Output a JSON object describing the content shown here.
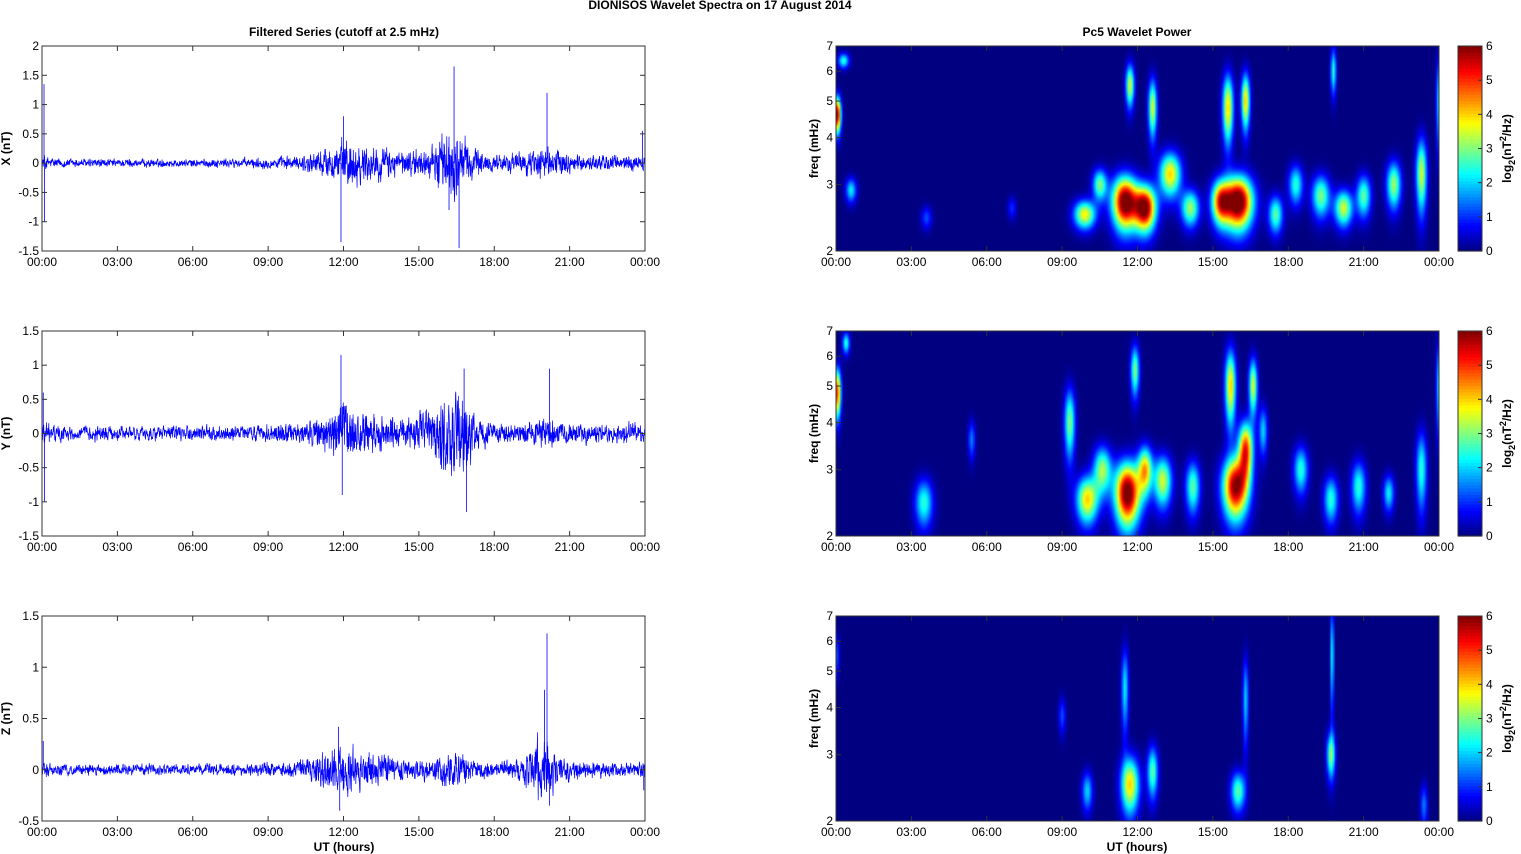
{
  "figure_title": "DIONISOS Wavelet Spectra on 17 August    2014",
  "left_title": "Filtered Series (cutoff at 2.5 mHz)",
  "right_title": "Pc5 Wavelet Power",
  "xlabel": "UT (hours)",
  "colors": {
    "trace": "#0000ff",
    "frame": "#333333"
  },
  "chart_data": [
    {
      "type": "line",
      "component": "X",
      "ylabel": "X (nT)",
      "xlim": [
        0,
        24
      ],
      "ylim": [
        -1.5,
        2
      ],
      "yticks": [
        "-1.5",
        "-1",
        "-0.5",
        "0",
        "0.5",
        "1",
        "1.5",
        "2"
      ],
      "xticks": [
        "00:00",
        "03:00",
        "06:00",
        "09:00",
        "12:00",
        "15:00",
        "18:00",
        "21:00",
        "00:00"
      ],
      "envelope": {
        "x": [
          0,
          0.3,
          1,
          3,
          6,
          8,
          9.5,
          10.5,
          11.5,
          12,
          12.8,
          13.5,
          14.5,
          15.5,
          16.2,
          16.6,
          17.2,
          18,
          19,
          20,
          20.5,
          21.5,
          23,
          24
        ],
        "y": [
          0.25,
          0.15,
          0.12,
          0.1,
          0.1,
          0.12,
          0.15,
          0.2,
          0.45,
          0.6,
          0.5,
          0.4,
          0.3,
          0.4,
          0.9,
          0.8,
          0.4,
          0.2,
          0.25,
          0.4,
          0.3,
          0.2,
          0.2,
          0.25
        ]
      },
      "spikes": [
        {
          "x": 0.08,
          "y": 1.35
        },
        {
          "x": 0.1,
          "y": -1.0
        },
        {
          "x": 11.9,
          "y": -1.35
        },
        {
          "x": 12.0,
          "y": 0.8
        },
        {
          "x": 16.4,
          "y": 1.65
        },
        {
          "x": 16.6,
          "y": -1.45
        },
        {
          "x": 16.2,
          "y": -0.8
        },
        {
          "x": 20.1,
          "y": 1.2
        },
        {
          "x": 23.9,
          "y": 0.55
        }
      ]
    },
    {
      "type": "line",
      "component": "Y",
      "ylabel": "Y (nT)",
      "xlim": [
        0,
        24
      ],
      "ylim": [
        -1.5,
        1.5
      ],
      "yticks": [
        "-1.5",
        "-1",
        "-0.5",
        "0",
        "0.5",
        "1",
        "1.5"
      ],
      "xticks": [
        "00:00",
        "03:00",
        "06:00",
        "09:00",
        "12:00",
        "15:00",
        "18:00",
        "21:00",
        "00:00"
      ],
      "envelope": {
        "x": [
          0,
          0.3,
          1,
          3,
          6,
          8,
          9.5,
          10.5,
          11.5,
          12,
          12.8,
          13.5,
          14.5,
          15.5,
          16.2,
          16.6,
          17.2,
          18,
          19,
          20,
          20.5,
          21.5,
          23,
          24
        ],
        "y": [
          0.3,
          0.2,
          0.15,
          0.15,
          0.15,
          0.15,
          0.2,
          0.25,
          0.5,
          0.7,
          0.45,
          0.35,
          0.3,
          0.5,
          0.8,
          0.9,
          0.4,
          0.2,
          0.2,
          0.35,
          0.25,
          0.2,
          0.2,
          0.25
        ]
      },
      "spikes": [
        {
          "x": 0.05,
          "y": 0.6
        },
        {
          "x": 0.1,
          "y": -1.0
        },
        {
          "x": 11.9,
          "y": 1.15
        },
        {
          "x": 11.95,
          "y": -0.9
        },
        {
          "x": 16.8,
          "y": 0.95
        },
        {
          "x": 16.9,
          "y": -1.15
        },
        {
          "x": 20.2,
          "y": 0.95
        }
      ]
    },
    {
      "type": "line",
      "component": "Z",
      "ylabel": "Z (nT)",
      "xlim": [
        0,
        24
      ],
      "ylim": [
        -0.5,
        1.5
      ],
      "yticks": [
        "-0.5",
        "0",
        "0.5",
        "1",
        "1.5"
      ],
      "xticks": [
        "00:00",
        "03:00",
        "06:00",
        "09:00",
        "12:00",
        "15:00",
        "18:00",
        "21:00",
        "00:00"
      ],
      "envelope": {
        "x": [
          0,
          0.3,
          1,
          3,
          6,
          8,
          9.5,
          10.5,
          11.5,
          12,
          12.8,
          13.5,
          14.5,
          15.5,
          16.2,
          16.6,
          17.2,
          18,
          19,
          19.8,
          20.1,
          20.5,
          21.5,
          23,
          24
        ],
        "y": [
          0.12,
          0.1,
          0.08,
          0.08,
          0.08,
          0.08,
          0.1,
          0.15,
          0.3,
          0.35,
          0.25,
          0.2,
          0.15,
          0.15,
          0.25,
          0.25,
          0.15,
          0.1,
          0.15,
          0.45,
          0.5,
          0.2,
          0.12,
          0.1,
          0.12
        ]
      },
      "spikes": [
        {
          "x": 0.05,
          "y": 0.28
        },
        {
          "x": 11.8,
          "y": 0.42
        },
        {
          "x": 11.85,
          "y": -0.4
        },
        {
          "x": 20.1,
          "y": 1.33
        },
        {
          "x": 20.0,
          "y": 0.78
        },
        {
          "x": 20.2,
          "y": -0.35
        },
        {
          "x": 23.95,
          "y": -0.2
        }
      ]
    },
    {
      "type": "heatmap",
      "component": "X",
      "ylabel": "freq (mHz)",
      "xlim": [
        0,
        24
      ],
      "ylim": [
        2,
        7
      ],
      "yscale": "log",
      "yticks": [
        "2",
        "3",
        "4",
        "5",
        "6",
        "7"
      ],
      "xticks": [
        "00:00",
        "03:00",
        "06:00",
        "09:00",
        "12:00",
        "15:00",
        "18:00",
        "21:00",
        "00:00"
      ],
      "colorbar_label": "log2(nT2/Hz)",
      "colorbar_ticks": [
        "0",
        "1",
        "2",
        "3",
        "4",
        "5",
        "6"
      ],
      "clim": [
        0,
        6
      ],
      "colormap": "jet",
      "blobs": [
        {
          "t": 0.05,
          "f": 4.6,
          "dt": 0.1,
          "df": 0.35,
          "a": 6
        },
        {
          "t": 0.3,
          "f": 6.4,
          "dt": 0.15,
          "df": 0.2,
          "a": 2.5
        },
        {
          "t": 0.6,
          "f": 2.9,
          "dt": 0.15,
          "df": 0.15,
          "a": 2.2
        },
        {
          "t": 3.6,
          "f": 2.45,
          "dt": 0.15,
          "df": 0.12,
          "a": 1.2
        },
        {
          "t": 7.0,
          "f": 2.6,
          "dt": 0.12,
          "df": 0.12,
          "a": 1.0
        },
        {
          "t": 9.9,
          "f": 2.5,
          "dt": 0.3,
          "df": 0.15,
          "a": 3.8
        },
        {
          "t": 10.5,
          "f": 3.0,
          "dt": 0.2,
          "df": 0.2,
          "a": 3.0
        },
        {
          "t": 11.5,
          "f": 2.7,
          "dt": 0.35,
          "df": 0.3,
          "a": 6.5
        },
        {
          "t": 12.3,
          "f": 2.6,
          "dt": 0.3,
          "df": 0.25,
          "a": 6.2
        },
        {
          "t": 11.7,
          "f": 5.5,
          "dt": 0.12,
          "df": 0.5,
          "a": 3.5
        },
        {
          "t": 12.6,
          "f": 4.8,
          "dt": 0.12,
          "df": 0.6,
          "a": 3.5
        },
        {
          "t": 13.3,
          "f": 3.2,
          "dt": 0.3,
          "df": 0.3,
          "a": 4.0
        },
        {
          "t": 14.1,
          "f": 2.6,
          "dt": 0.25,
          "df": 0.2,
          "a": 3.2
        },
        {
          "t": 15.3,
          "f": 2.7,
          "dt": 0.25,
          "df": 0.25,
          "a": 4.5
        },
        {
          "t": 16.0,
          "f": 2.7,
          "dt": 0.4,
          "df": 0.3,
          "a": 6.8
        },
        {
          "t": 15.6,
          "f": 4.8,
          "dt": 0.15,
          "df": 0.7,
          "a": 4.0
        },
        {
          "t": 16.3,
          "f": 5.0,
          "dt": 0.12,
          "df": 0.6,
          "a": 4.0
        },
        {
          "t": 17.5,
          "f": 2.5,
          "dt": 0.2,
          "df": 0.2,
          "a": 2.8
        },
        {
          "t": 18.3,
          "f": 3.0,
          "dt": 0.2,
          "df": 0.25,
          "a": 2.5
        },
        {
          "t": 19.3,
          "f": 2.8,
          "dt": 0.25,
          "df": 0.25,
          "a": 3.0
        },
        {
          "t": 20.2,
          "f": 2.6,
          "dt": 0.25,
          "df": 0.2,
          "a": 3.5
        },
        {
          "t": 21.0,
          "f": 2.8,
          "dt": 0.2,
          "df": 0.25,
          "a": 2.8
        },
        {
          "t": 22.2,
          "f": 3.0,
          "dt": 0.2,
          "df": 0.3,
          "a": 3.2
        },
        {
          "t": 23.3,
          "f": 3.2,
          "dt": 0.15,
          "df": 0.5,
          "a": 3.5
        },
        {
          "t": 19.8,
          "f": 6.0,
          "dt": 0.08,
          "df": 0.6,
          "a": 2.5
        },
        {
          "t": 23.95,
          "f": 5.0,
          "dt": 0.05,
          "df": 1.0,
          "a": 2.0
        }
      ]
    },
    {
      "type": "heatmap",
      "component": "Y",
      "ylabel": "freq (mHz)",
      "xlim": [
        0,
        24
      ],
      "ylim": [
        2,
        7
      ],
      "yscale": "log",
      "yticks": [
        "2",
        "3",
        "4",
        "5",
        "6",
        "7"
      ],
      "xticks": [
        "00:00",
        "03:00",
        "06:00",
        "09:00",
        "12:00",
        "15:00",
        "18:00",
        "21:00",
        "00:00"
      ],
      "colorbar_label": "log2(nT2/Hz)",
      "colorbar_ticks": [
        "0",
        "1",
        "2",
        "3",
        "4",
        "5",
        "6"
      ],
      "clim": [
        0,
        6
      ],
      "colormap": "jet",
      "blobs": [
        {
          "t": 0.05,
          "f": 4.8,
          "dt": 0.1,
          "df": 0.5,
          "a": 5
        },
        {
          "t": 0.4,
          "f": 6.5,
          "dt": 0.1,
          "df": 0.3,
          "a": 2.5
        },
        {
          "t": 3.5,
          "f": 2.45,
          "dt": 0.25,
          "df": 0.25,
          "a": 2.5
        },
        {
          "t": 5.4,
          "f": 3.6,
          "dt": 0.1,
          "df": 0.3,
          "a": 1.5
        },
        {
          "t": 9.3,
          "f": 4.0,
          "dt": 0.15,
          "df": 0.6,
          "a": 3.0
        },
        {
          "t": 10.0,
          "f": 2.5,
          "dt": 0.3,
          "df": 0.25,
          "a": 4.0
        },
        {
          "t": 10.6,
          "f": 3.0,
          "dt": 0.25,
          "df": 0.3,
          "a": 3.2
        },
        {
          "t": 11.6,
          "f": 2.6,
          "dt": 0.35,
          "df": 0.35,
          "a": 6.5
        },
        {
          "t": 12.3,
          "f": 3.0,
          "dt": 0.2,
          "df": 0.3,
          "a": 4.0
        },
        {
          "t": 11.9,
          "f": 5.5,
          "dt": 0.12,
          "df": 0.6,
          "a": 3.0
        },
        {
          "t": 13.0,
          "f": 2.8,
          "dt": 0.25,
          "df": 0.3,
          "a": 3.5
        },
        {
          "t": 14.2,
          "f": 2.7,
          "dt": 0.2,
          "df": 0.3,
          "a": 2.8
        },
        {
          "t": 15.9,
          "f": 2.7,
          "dt": 0.35,
          "df": 0.35,
          "a": 6.0
        },
        {
          "t": 16.3,
          "f": 3.4,
          "dt": 0.2,
          "df": 0.4,
          "a": 5.0
        },
        {
          "t": 15.7,
          "f": 5.0,
          "dt": 0.15,
          "df": 0.8,
          "a": 4.0
        },
        {
          "t": 16.6,
          "f": 5.0,
          "dt": 0.12,
          "df": 0.6,
          "a": 3.5
        },
        {
          "t": 17.0,
          "f": 3.8,
          "dt": 0.12,
          "df": 0.4,
          "a": 2.0
        },
        {
          "t": 18.5,
          "f": 3.0,
          "dt": 0.2,
          "df": 0.3,
          "a": 2.5
        },
        {
          "t": 19.7,
          "f": 2.5,
          "dt": 0.2,
          "df": 0.25,
          "a": 2.5
        },
        {
          "t": 20.8,
          "f": 2.7,
          "dt": 0.2,
          "df": 0.3,
          "a": 2.5
        },
        {
          "t": 22.0,
          "f": 2.6,
          "dt": 0.15,
          "df": 0.2,
          "a": 2.2
        },
        {
          "t": 23.3,
          "f": 3.0,
          "dt": 0.15,
          "df": 0.5,
          "a": 2.5
        },
        {
          "t": 23.95,
          "f": 5.0,
          "dt": 0.05,
          "df": 1.0,
          "a": 2.0
        }
      ]
    },
    {
      "type": "heatmap",
      "component": "Z",
      "ylabel": "freq (mHz)",
      "xlim": [
        0,
        24
      ],
      "ylim": [
        2,
        7
      ],
      "yscale": "log",
      "yticks": [
        "2",
        "3",
        "4",
        "5",
        "6",
        "7"
      ],
      "xticks": [
        "00:00",
        "03:00",
        "06:00",
        "09:00",
        "12:00",
        "15:00",
        "18:00",
        "21:00",
        "00:00"
      ],
      "colorbar_label": "log2(nT2/Hz)",
      "colorbar_ticks": [
        "0",
        "1",
        "2",
        "3",
        "4",
        "5",
        "6"
      ],
      "clim": [
        0,
        6
      ],
      "colormap": "jet",
      "blobs": [
        {
          "t": 0.05,
          "f": 5.5,
          "dt": 0.06,
          "df": 0.5,
          "a": 1.2
        },
        {
          "t": 9.0,
          "f": 3.8,
          "dt": 0.1,
          "df": 0.3,
          "a": 1.2
        },
        {
          "t": 10.0,
          "f": 2.4,
          "dt": 0.15,
          "df": 0.2,
          "a": 2.0
        },
        {
          "t": 11.7,
          "f": 2.5,
          "dt": 0.25,
          "df": 0.3,
          "a": 4.0
        },
        {
          "t": 11.5,
          "f": 4.5,
          "dt": 0.1,
          "df": 0.8,
          "a": 2.2
        },
        {
          "t": 12.6,
          "f": 2.7,
          "dt": 0.15,
          "df": 0.3,
          "a": 2.8
        },
        {
          "t": 16.0,
          "f": 2.4,
          "dt": 0.2,
          "df": 0.2,
          "a": 2.8
        },
        {
          "t": 16.3,
          "f": 4.2,
          "dt": 0.08,
          "df": 0.8,
          "a": 2.0
        },
        {
          "t": 19.7,
          "f": 3.0,
          "dt": 0.12,
          "df": 0.3,
          "a": 3.0
        },
        {
          "t": 19.75,
          "f": 5.5,
          "dt": 0.05,
          "df": 1.2,
          "a": 2.5
        },
        {
          "t": 23.4,
          "f": 2.2,
          "dt": 0.1,
          "df": 0.2,
          "a": 1.5
        }
      ]
    }
  ]
}
